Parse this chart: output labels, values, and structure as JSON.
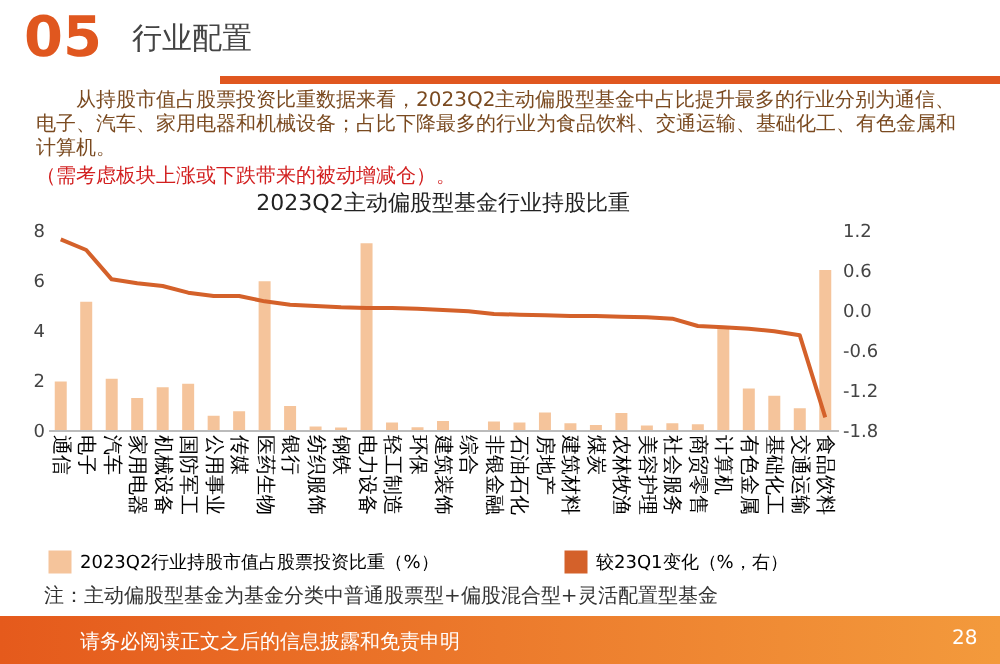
{
  "chart_data": {
    "type": "bar",
    "title": "2023Q2主动偏股型基金行业持股比重",
    "annotations": [
      "05",
      "行业配置",
      "从持股市值占股票投资比重数据来看，2023Q2主动偏股型基金中占比提升最多的行业分别为通信、电子、汽车、家用电器和机械设备；占比下降最多的行业为食品饮料、交通运输、基础化工、有色金属和计算机。",
      "（需考虑板块上涨或下跌带来的被动增减仓）。",
      "注：主动偏股型基金为基金分类中普通股票型+偏股混合型+灵活配置型基金",
      "请务必阅读正文之后的信息披露和免责申明",
      "28"
    ],
    "categories": [
      "通信",
      "电子",
      "汽车",
      "家用电器",
      "机械设备",
      "国防军工",
      "公用事业",
      "传媒",
      "医药生物",
      "银行",
      "纺织服饰",
      "钢铁",
      "电力设备",
      "轻工制造",
      "环保",
      "建筑装饰",
      "综合",
      "非银金融",
      "石油石化",
      "房地产",
      "建筑材料",
      "煤炭",
      "农林牧渔",
      "美容护理",
      "社会服务",
      "商贸零售",
      "计算机",
      "有色金属",
      "基础化工",
      "交通运输",
      "食品饮料"
    ],
    "series": [
      {
        "name": "2023Q2行业持股市值占股票投资比重（%）",
        "color": "#f5c49b",
        "values": [
          1.94,
          5.13,
          2.05,
          1.28,
          1.71,
          1.85,
          0.57,
          0.75,
          5.95,
          0.96,
          0.14,
          0.1,
          7.47,
          0.3,
          0.11,
          0.36,
          0,
          0.34,
          0.3,
          0.7,
          0.27,
          0.2,
          0.68,
          0.18,
          0.27,
          0.23,
          4.05,
          1.66,
          1.37,
          0.87,
          6.4
        ]
      },
      {
        "name": "较23Q1变化（%，右）",
        "type": "line",
        "axis": "y2",
        "color": "#d4612a",
        "values": [
          1.06,
          0.9,
          0.46,
          0.4,
          0.36,
          0.26,
          0.21,
          0.21,
          0.13,
          0.08,
          0.06,
          0.04,
          0.03,
          0.03,
          0.02,
          0,
          -0.02,
          -0.06,
          -0.07,
          -0.08,
          -0.09,
          -0.09,
          -0.1,
          -0.11,
          -0.13,
          -0.24,
          -0.26,
          -0.28,
          -0.32,
          -0.38,
          -1.61
        ]
      }
    ],
    "ylim": [
      0,
      8
    ],
    "yticks": [
      0,
      2,
      4,
      6,
      8
    ],
    "y2lim": [
      -1.8,
      1.2
    ],
    "y2ticks": [
      -1.8,
      -1.2,
      -0.6,
      {
        "value": 0,
        "label": "0.0"
      },
      0.6,
      1.2
    ],
    "legend": "bottom",
    "marker": "none",
    "line_style": "solid"
  }
}
